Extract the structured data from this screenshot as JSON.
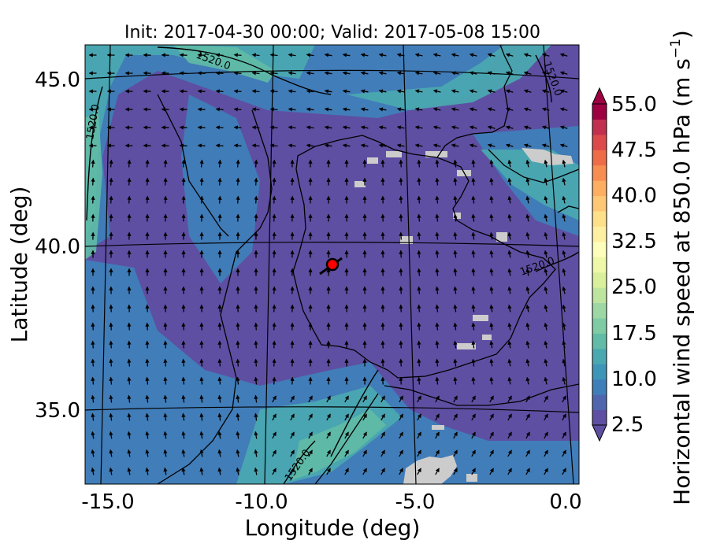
{
  "title": "Init: 2017-04-30 00:00; Valid: 2017-05-08 15:00",
  "xlabel": "Longitude (deg)",
  "ylabel": "Latitude (deg)",
  "x_ticks": [
    "-15.0",
    "-10.0",
    "-5.0",
    "0.0"
  ],
  "y_ticks": [
    "45.0",
    "40.0",
    "35.0"
  ],
  "colorbar": {
    "label_main": "Horizontal wind speed at 850.0 hPa (m s",
    "label_exp": "−1",
    "label_close": ")",
    "ticks": [
      "2.5",
      "10.0",
      "17.5",
      "25.0",
      "32.5",
      "40.0",
      "47.5",
      "55.0"
    ],
    "colors": [
      "#5e4fa2",
      "#4f66ae",
      "#3f7fb9",
      "#3d95b8",
      "#4aa8b0",
      "#61bba6",
      "#7ecba4",
      "#9dd8a4",
      "#bde5a0",
      "#d9ef9b",
      "#eef8a8",
      "#fdfebc",
      "#feefa3",
      "#fee08b",
      "#fdc776",
      "#fdae61",
      "#f88d52",
      "#ef6c48",
      "#dc4a4c",
      "#c1304e",
      "#9e0142"
    ]
  },
  "contour_labels": [
    "1520.0",
    "1520.0",
    "1520.0",
    "1520.0",
    "1520.0"
  ],
  "station_marker": {
    "lon": -7.7,
    "lat": 39.3
  },
  "map_colors": {
    "dominant": "#5e4fa2",
    "mid": "#3f7fb9",
    "high": "#61bba6",
    "missing": "#cccccc",
    "coast": "#000000",
    "marker": "#ff0000"
  }
}
